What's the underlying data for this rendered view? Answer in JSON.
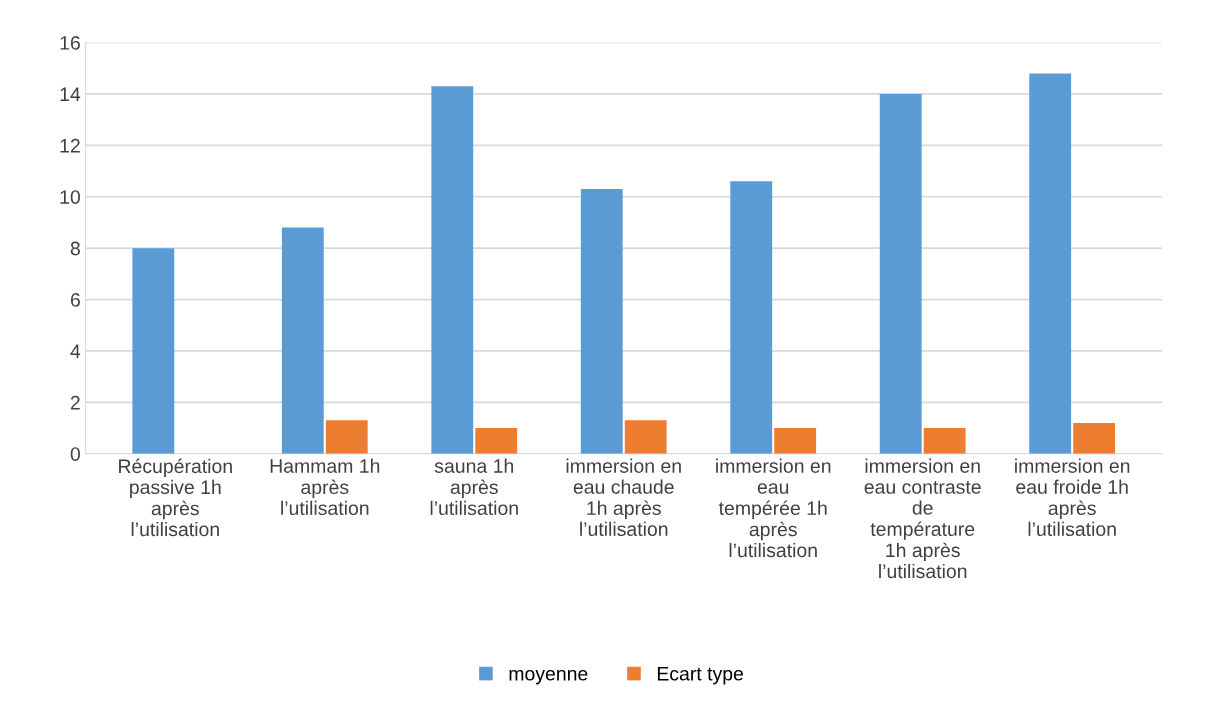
{
  "chart_data": {
    "type": "bar",
    "categories": [
      "Récupération\npassive 1h\naprès\nl’utilisation",
      "Hammam 1h\naprès\nl’utilisation",
      "sauna 1h\naprès\nl’utilisation",
      "immersion en\neau chaude\n1h après\nl’utilisation",
      "immersion en\neau\ntempérée 1h\naprès\nl’utilisation",
      "immersion en\neau contraste\nde\ntempérature\n1h après\nl’utilisation",
      "immersion en\neau froide 1h\naprès\nl’utilisation"
    ],
    "series": [
      {
        "name": "moyenne",
        "color": "#5b9bd5",
        "values": [
          8.0,
          8.8,
          14.3,
          10.3,
          10.6,
          14.0,
          14.8
        ]
      },
      {
        "name": "Ecart type",
        "color": "#ed7d31",
        "values": [
          0,
          1.3,
          1.0,
          1.3,
          1.0,
          1.0,
          1.2
        ]
      }
    ],
    "ylim": [
      0,
      16
    ],
    "yticks": [
      0,
      2,
      4,
      6,
      8,
      10,
      12,
      14,
      16
    ],
    "grid": "y",
    "legend": "bottom"
  }
}
